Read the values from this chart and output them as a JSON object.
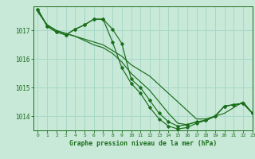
{
  "background_color": "#c8e8d8",
  "grid_color": "#a8d8c8",
  "line_color": "#1a6e1a",
  "text_color": "#1a6e1a",
  "xlabel": "Graphe pression niveau de la mer (hPa)",
  "xlim": [
    -0.5,
    23
  ],
  "ylim": [
    1013.5,
    1017.85
  ],
  "yticks": [
    1014,
    1015,
    1016,
    1017
  ],
  "xticks": [
    0,
    1,
    2,
    3,
    4,
    5,
    6,
    7,
    8,
    9,
    10,
    11,
    12,
    13,
    14,
    15,
    16,
    17,
    18,
    19,
    20,
    21,
    22,
    23
  ],
  "series1_x": [
    0,
    1,
    2,
    3,
    4,
    5,
    6,
    7,
    8,
    9,
    10,
    11,
    12,
    13,
    14,
    15,
    16,
    17,
    18,
    19,
    20,
    21,
    22,
    23
  ],
  "series1_y": [
    1017.65,
    1017.2,
    1017.0,
    1016.9,
    1016.8,
    1016.7,
    1016.6,
    1016.5,
    1016.3,
    1016.1,
    1015.8,
    1015.6,
    1015.4,
    1015.1,
    1014.8,
    1014.5,
    1014.2,
    1013.9,
    1013.9,
    1014.0,
    1014.1,
    1014.3,
    1014.5,
    1014.1
  ],
  "series2_x": [
    0,
    1,
    2,
    3,
    4,
    5,
    6,
    7,
    8,
    9,
    10,
    11,
    12,
    13,
    14,
    15,
    16,
    17,
    18,
    19,
    20,
    21,
    22,
    23
  ],
  "series2_y": [
    1017.7,
    1017.2,
    1017.0,
    1016.9,
    1016.8,
    1016.65,
    1016.5,
    1016.4,
    1016.2,
    1015.9,
    1015.5,
    1015.2,
    1014.9,
    1014.5,
    1014.1,
    1013.75,
    1013.7,
    1013.8,
    1013.85,
    1014.0,
    1014.35,
    1014.4,
    1014.45,
    1014.1
  ],
  "series3_x": [
    0,
    1,
    2,
    3,
    4,
    5,
    6,
    7,
    8,
    9,
    10,
    11,
    12,
    13,
    14,
    15,
    16,
    17,
    18,
    19,
    20,
    21,
    22,
    23
  ],
  "series3_y": [
    1017.75,
    1017.15,
    1016.95,
    1016.85,
    1017.05,
    1017.2,
    1017.4,
    1017.4,
    1017.05,
    1016.55,
    1015.3,
    1015.0,
    1014.55,
    1014.1,
    1013.8,
    1013.65,
    1013.7,
    1013.8,
    1013.85,
    1014.0,
    1014.35,
    1014.4,
    1014.45,
    1014.1
  ],
  "series4_x": [
    0,
    1,
    2,
    3,
    4,
    5,
    6,
    7,
    8,
    9,
    10,
    11,
    12,
    13,
    14,
    15,
    16,
    17,
    18,
    19,
    20,
    21,
    22,
    23
  ],
  "series4_y": [
    1017.75,
    1017.15,
    1016.95,
    1016.85,
    1017.05,
    1017.2,
    1017.4,
    1017.4,
    1016.6,
    1015.7,
    1015.15,
    1014.8,
    1014.3,
    1013.9,
    1013.65,
    1013.55,
    1013.6,
    1013.75,
    1013.85,
    1014.0,
    1014.35,
    1014.4,
    1014.45,
    1014.1
  ]
}
